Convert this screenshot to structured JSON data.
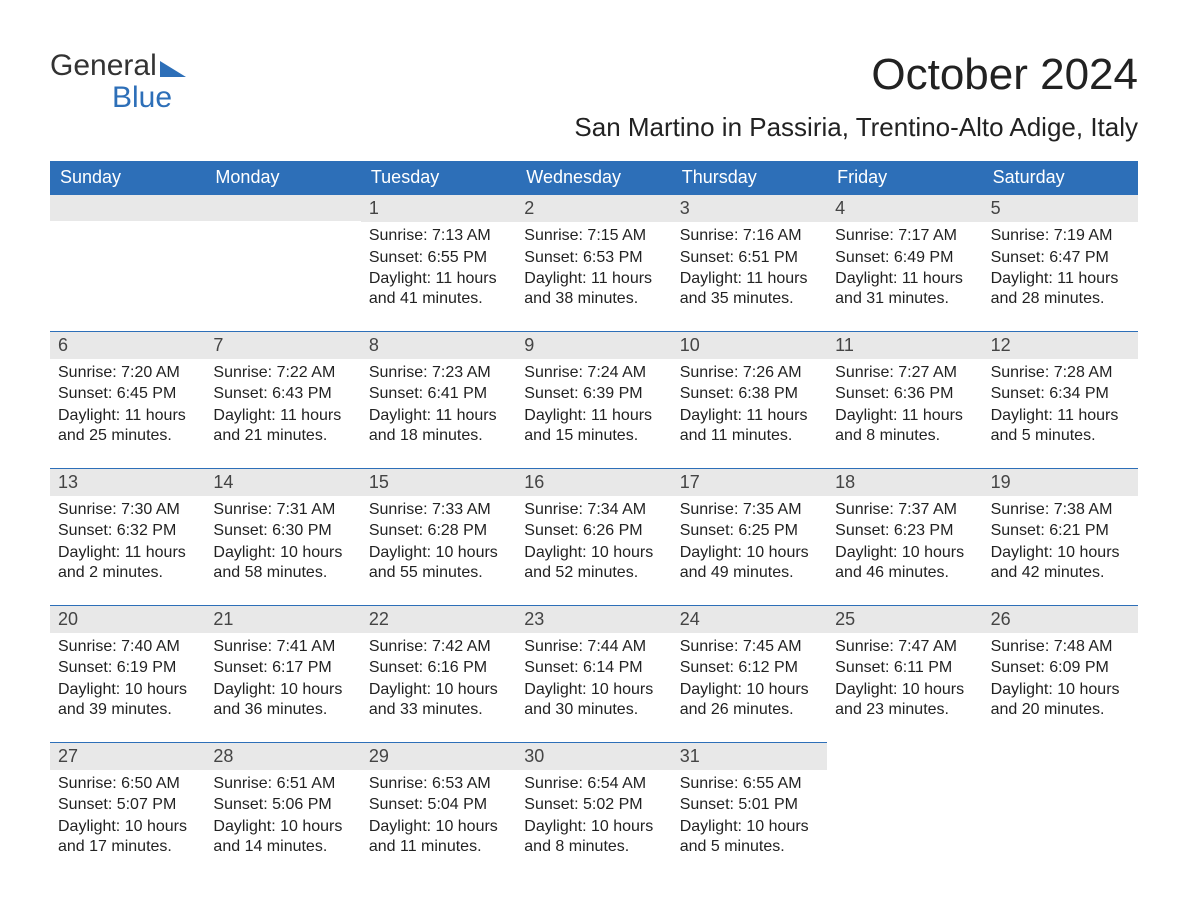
{
  "logo": {
    "line1": "General",
    "line2": "Blue",
    "flag_color": "#2d6fb8"
  },
  "title": "October 2024",
  "location": "San Martino in Passiria, Trentino-Alto Adige, Italy",
  "colors": {
    "header_bg": "#2d6fb8",
    "header_fg": "#ffffff",
    "daynum_bg": "#e8e8e8",
    "text": "#222222",
    "cell_border": "#2d6fb8",
    "page_bg": "#ffffff"
  },
  "typography": {
    "title_fontsize": 44,
    "location_fontsize": 26,
    "dayhead_fontsize": 18,
    "daynum_fontsize": 18,
    "detail_fontsize": 16,
    "font_family": "Arial"
  },
  "layout": {
    "columns": 7,
    "rows": 5,
    "leading_blank_cells": 2
  },
  "day_headers": [
    "Sunday",
    "Monday",
    "Tuesday",
    "Wednesday",
    "Thursday",
    "Friday",
    "Saturday"
  ],
  "days": [
    {
      "n": 1,
      "sunrise": "7:13 AM",
      "sunset": "6:55 PM",
      "daylight": "11 hours and 41 minutes."
    },
    {
      "n": 2,
      "sunrise": "7:15 AM",
      "sunset": "6:53 PM",
      "daylight": "11 hours and 38 minutes."
    },
    {
      "n": 3,
      "sunrise": "7:16 AM",
      "sunset": "6:51 PM",
      "daylight": "11 hours and 35 minutes."
    },
    {
      "n": 4,
      "sunrise": "7:17 AM",
      "sunset": "6:49 PM",
      "daylight": "11 hours and 31 minutes."
    },
    {
      "n": 5,
      "sunrise": "7:19 AM",
      "sunset": "6:47 PM",
      "daylight": "11 hours and 28 minutes."
    },
    {
      "n": 6,
      "sunrise": "7:20 AM",
      "sunset": "6:45 PM",
      "daylight": "11 hours and 25 minutes."
    },
    {
      "n": 7,
      "sunrise": "7:22 AM",
      "sunset": "6:43 PM",
      "daylight": "11 hours and 21 minutes."
    },
    {
      "n": 8,
      "sunrise": "7:23 AM",
      "sunset": "6:41 PM",
      "daylight": "11 hours and 18 minutes."
    },
    {
      "n": 9,
      "sunrise": "7:24 AM",
      "sunset": "6:39 PM",
      "daylight": "11 hours and 15 minutes."
    },
    {
      "n": 10,
      "sunrise": "7:26 AM",
      "sunset": "6:38 PM",
      "daylight": "11 hours and 11 minutes."
    },
    {
      "n": 11,
      "sunrise": "7:27 AM",
      "sunset": "6:36 PM",
      "daylight": "11 hours and 8 minutes."
    },
    {
      "n": 12,
      "sunrise": "7:28 AM",
      "sunset": "6:34 PM",
      "daylight": "11 hours and 5 minutes."
    },
    {
      "n": 13,
      "sunrise": "7:30 AM",
      "sunset": "6:32 PM",
      "daylight": "11 hours and 2 minutes."
    },
    {
      "n": 14,
      "sunrise": "7:31 AM",
      "sunset": "6:30 PM",
      "daylight": "10 hours and 58 minutes."
    },
    {
      "n": 15,
      "sunrise": "7:33 AM",
      "sunset": "6:28 PM",
      "daylight": "10 hours and 55 minutes."
    },
    {
      "n": 16,
      "sunrise": "7:34 AM",
      "sunset": "6:26 PM",
      "daylight": "10 hours and 52 minutes."
    },
    {
      "n": 17,
      "sunrise": "7:35 AM",
      "sunset": "6:25 PM",
      "daylight": "10 hours and 49 minutes."
    },
    {
      "n": 18,
      "sunrise": "7:37 AM",
      "sunset": "6:23 PM",
      "daylight": "10 hours and 46 minutes."
    },
    {
      "n": 19,
      "sunrise": "7:38 AM",
      "sunset": "6:21 PM",
      "daylight": "10 hours and 42 minutes."
    },
    {
      "n": 20,
      "sunrise": "7:40 AM",
      "sunset": "6:19 PM",
      "daylight": "10 hours and 39 minutes."
    },
    {
      "n": 21,
      "sunrise": "7:41 AM",
      "sunset": "6:17 PM",
      "daylight": "10 hours and 36 minutes."
    },
    {
      "n": 22,
      "sunrise": "7:42 AM",
      "sunset": "6:16 PM",
      "daylight": "10 hours and 33 minutes."
    },
    {
      "n": 23,
      "sunrise": "7:44 AM",
      "sunset": "6:14 PM",
      "daylight": "10 hours and 30 minutes."
    },
    {
      "n": 24,
      "sunrise": "7:45 AM",
      "sunset": "6:12 PM",
      "daylight": "10 hours and 26 minutes."
    },
    {
      "n": 25,
      "sunrise": "7:47 AM",
      "sunset": "6:11 PM",
      "daylight": "10 hours and 23 minutes."
    },
    {
      "n": 26,
      "sunrise": "7:48 AM",
      "sunset": "6:09 PM",
      "daylight": "10 hours and 20 minutes."
    },
    {
      "n": 27,
      "sunrise": "6:50 AM",
      "sunset": "5:07 PM",
      "daylight": "10 hours and 17 minutes."
    },
    {
      "n": 28,
      "sunrise": "6:51 AM",
      "sunset": "5:06 PM",
      "daylight": "10 hours and 14 minutes."
    },
    {
      "n": 29,
      "sunrise": "6:53 AM",
      "sunset": "5:04 PM",
      "daylight": "10 hours and 11 minutes."
    },
    {
      "n": 30,
      "sunrise": "6:54 AM",
      "sunset": "5:02 PM",
      "daylight": "10 hours and 8 minutes."
    },
    {
      "n": 31,
      "sunrise": "6:55 AM",
      "sunset": "5:01 PM",
      "daylight": "10 hours and 5 minutes."
    }
  ],
  "labels": {
    "sunrise": "Sunrise:",
    "sunset": "Sunset:",
    "daylight": "Daylight:"
  }
}
